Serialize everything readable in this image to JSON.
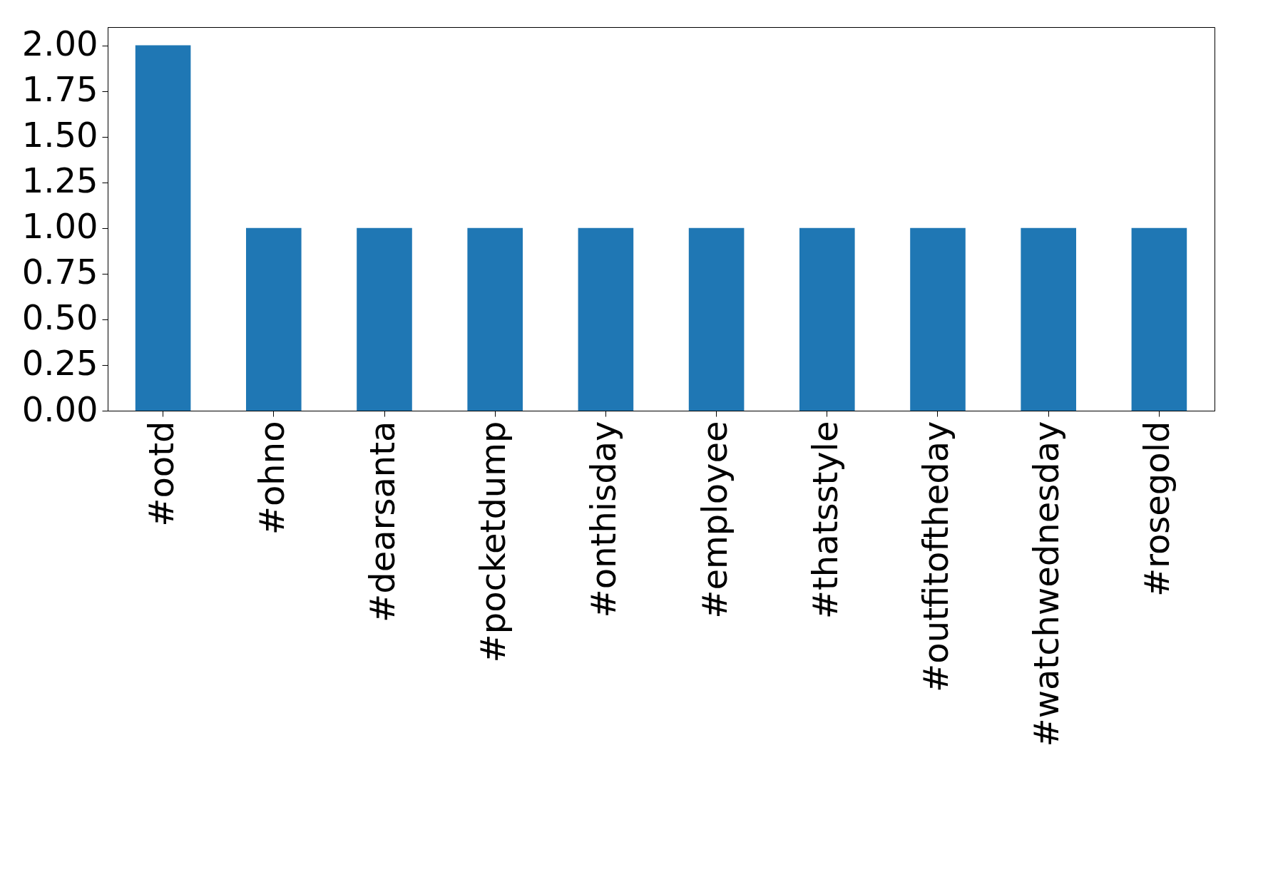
{
  "chart_data": {
    "type": "bar",
    "categories": [
      "#ootd",
      "#ohno",
      "#dearsanta",
      "#pocketdump",
      "#onthisday",
      "#employee",
      "#thatsstyle",
      "#outfitoftheday",
      "#watchwednesday",
      "#rosegold"
    ],
    "values": [
      2,
      1,
      1,
      1,
      1,
      1,
      1,
      1,
      1,
      1
    ],
    "color": "#1f77b4",
    "ylim": [
      0,
      2.1
    ],
    "yticks": [
      {
        "value": 0,
        "label": "0.00"
      },
      {
        "value": 0.25,
        "label": "0.25"
      },
      {
        "value": 0.5,
        "label": "0.50"
      },
      {
        "value": 0.75,
        "label": "0.75"
      },
      {
        "value": 1,
        "label": "1.00"
      },
      {
        "value": 1.25,
        "label": "1.25"
      },
      {
        "value": 1.5,
        "label": "1.50"
      },
      {
        "value": 1.75,
        "label": "1.75"
      },
      {
        "value": 2,
        "label": "2.00"
      }
    ],
    "grid": false
  }
}
